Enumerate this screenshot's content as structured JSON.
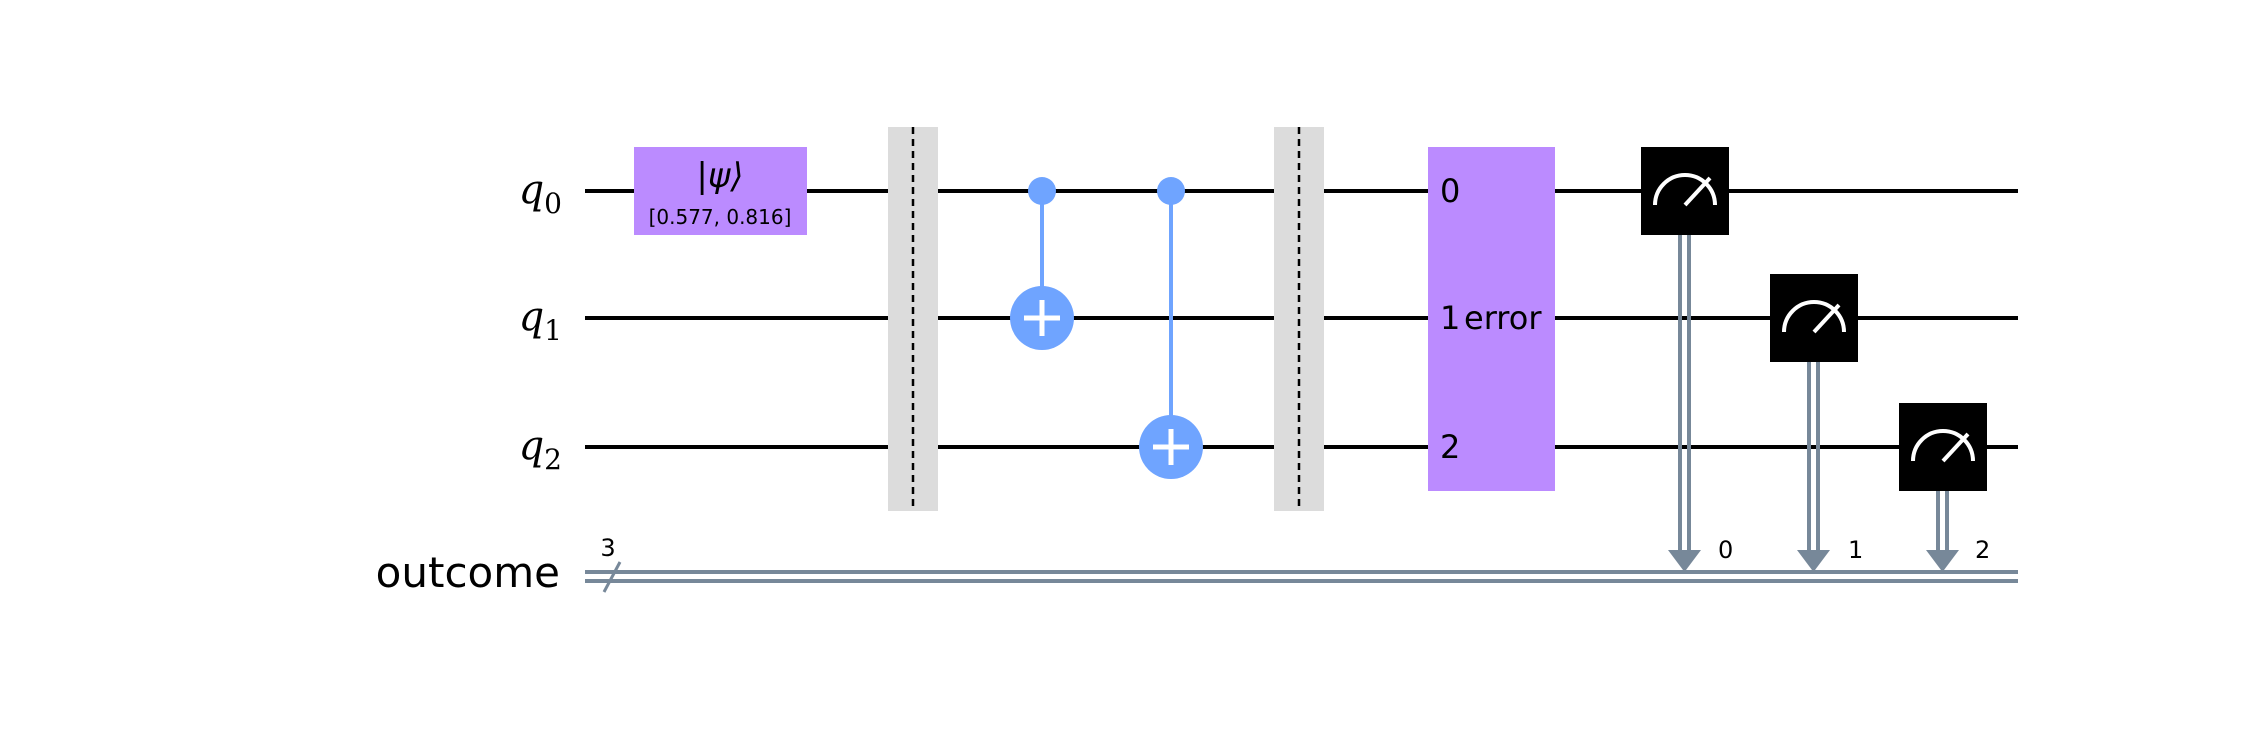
{
  "qubits": [
    {
      "base": "q",
      "index": "0"
    },
    {
      "base": "q",
      "index": "1"
    },
    {
      "base": "q",
      "index": "2"
    }
  ],
  "classical_register": {
    "label": "outcome",
    "size": "3"
  },
  "initialize_gate": {
    "label": "|ψ⟩",
    "params": "[0.577, 0.816]"
  },
  "error_gate": {
    "label": "error",
    "port_labels": [
      "0",
      "1",
      "2"
    ]
  },
  "measure_bits": [
    "0",
    "1",
    "2"
  ],
  "colors": {
    "wire": "#000000",
    "classical_wire": "#778899",
    "gate_purple": "#bb8bff",
    "cnot_blue": "#6fa4ff",
    "barrier_gray": "#dcdcdc",
    "measure_black": "#000000"
  }
}
